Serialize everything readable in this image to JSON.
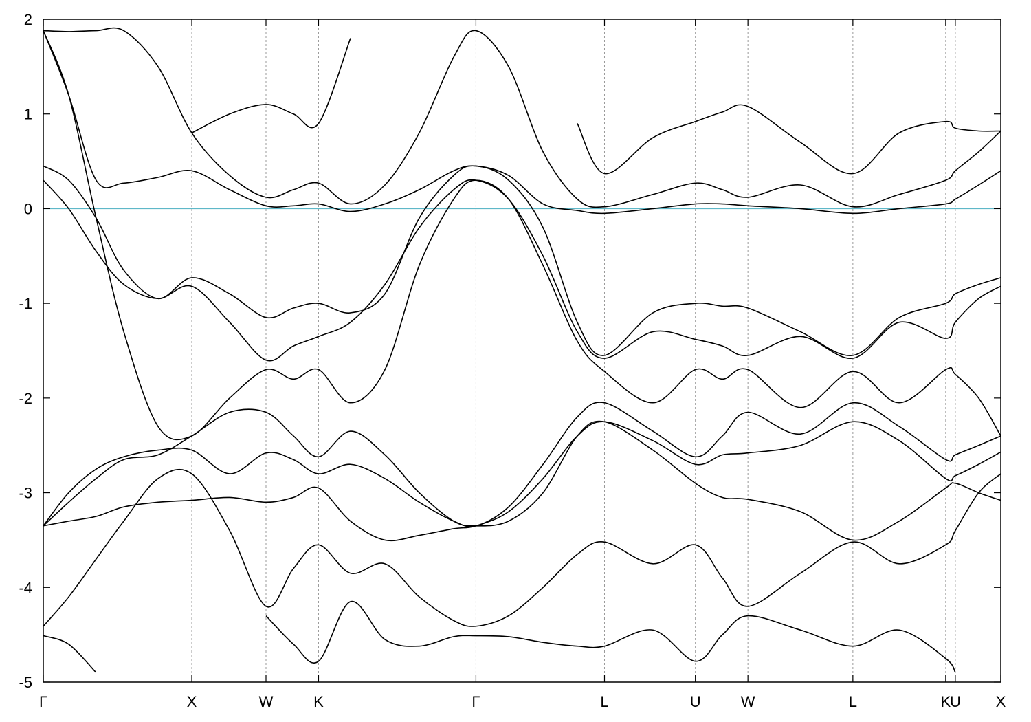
{
  "chart_data": {
    "type": "line",
    "color": "#000000",
    "x": [
      0,
      0.171,
      0.356,
      0.542,
      0.773,
      1.0,
      1.255,
      1.5,
      1.685,
      1.854,
      2.069,
      2.301,
      2.532,
      2.764,
      2.914,
      3.134,
      3.366,
      3.597,
      3.78,
      4.106,
      4.392,
      4.574,
      4.746,
      5.1,
      5.453,
      5.765,
      6.078,
      6.143,
      6.3,
      6.449
    ],
    "series": [
      {
        "values": [
          -4.51,
          -4.6,
          -4.9,
          null,
          null,
          null,
          null,
          -4.3,
          -4.6,
          -4.78,
          -4.15,
          -4.55,
          -4.62,
          -4.52,
          -4.51,
          -4.52,
          -4.58,
          -4.62,
          -4.62,
          -4.45,
          -4.78,
          -4.5,
          -4.3,
          -4.45,
          -4.62,
          -4.45,
          -4.75,
          -4.9,
          null,
          null
        ]
      },
      {
        "values": [
          -4.41,
          -4.1,
          -3.7,
          -3.3,
          -2.85,
          -2.8,
          -3.4,
          -4.2,
          -3.8,
          -3.55,
          -3.85,
          -3.75,
          -4.1,
          -4.35,
          -4.41,
          -4.3,
          -4.0,
          -3.65,
          -3.52,
          -3.75,
          -3.55,
          -3.9,
          -4.2,
          -3.85,
          -3.52,
          -3.75,
          -3.55,
          -3.4,
          -3.0,
          -2.8
        ]
      },
      {
        "values": [
          -3.35,
          -3.3,
          -3.25,
          -3.15,
          -3.1,
          -3.08,
          -3.05,
          -3.1,
          -3.05,
          -2.95,
          -3.3,
          -3.5,
          -3.45,
          -3.38,
          -3.35,
          -3.2,
          -2.85,
          -2.4,
          -2.25,
          -2.45,
          -2.7,
          -2.6,
          -2.58,
          -2.5,
          -2.25,
          -2.45,
          -2.85,
          -2.82,
          -2.7,
          -2.57
        ]
      },
      {
        "values": [
          -3.35,
          -3.0,
          -2.75,
          -2.62,
          -2.55,
          -2.55,
          -2.8,
          -2.58,
          -2.65,
          -2.8,
          -2.7,
          -2.85,
          -3.1,
          -3.3,
          -3.35,
          -3.15,
          -2.7,
          -2.2,
          -2.05,
          -2.35,
          -2.62,
          -2.4,
          -2.15,
          -2.38,
          -2.05,
          -2.3,
          -2.65,
          -2.6,
          -2.5,
          -2.4
        ]
      },
      {
        "values": [
          1.88,
          1.2,
          -0.1,
          -1.3,
          -2.3,
          -2.4,
          -2.0,
          -1.7,
          -1.8,
          -1.7,
          -2.05,
          -1.7,
          -0.6,
          0.1,
          0.3,
          0.1,
          -0.6,
          -1.4,
          -1.72,
          -2.05,
          -1.7,
          -1.8,
          -1.7,
          -2.1,
          -1.72,
          -2.05,
          -1.7,
          -1.75,
          -2.0,
          -2.4
        ]
      },
      {
        "values": [
          0.3,
          0.0,
          -0.45,
          -0.8,
          -0.95,
          -0.82,
          -1.2,
          -1.6,
          -1.45,
          -1.35,
          -1.2,
          -0.8,
          -0.2,
          0.2,
          0.3,
          0.1,
          -0.5,
          -1.3,
          -1.58,
          -1.3,
          -1.38,
          -1.45,
          -1.55,
          -1.35,
          -1.58,
          -1.2,
          -1.37,
          -1.2,
          -0.95,
          -0.82
        ]
      },
      {
        "values": [
          0.45,
          0.3,
          -0.1,
          -0.65,
          -0.95,
          -0.73,
          -0.9,
          -1.15,
          -1.05,
          -1.0,
          -1.1,
          -0.9,
          -0.1,
          0.35,
          0.45,
          0.3,
          -0.2,
          -1.2,
          -1.55,
          -1.1,
          -1.0,
          -1.03,
          -1.05,
          -1.3,
          -1.55,
          -1.15,
          -1.0,
          -0.9,
          -0.8,
          -0.73
        ]
      },
      {
        "values": [
          1.88,
          1.87,
          1.88,
          1.88,
          1.5,
          0.8,
          0.35,
          0.12,
          0.2,
          0.27,
          0.05,
          0.25,
          0.8,
          1.6,
          1.88,
          1.5,
          0.6,
          0.1,
          0.02,
          0.15,
          0.27,
          0.2,
          0.12,
          0.25,
          0.02,
          0.15,
          0.3,
          0.4,
          0.6,
          0.82
        ]
      },
      {
        "values": [
          1.88,
          1.2,
          0.3,
          0.27,
          0.33,
          0.4,
          0.2,
          0.03,
          0.03,
          0.05,
          -0.03,
          0.05,
          0.2,
          0.4,
          0.45,
          0.35,
          0.05,
          -0.02,
          -0.05,
          0.0,
          0.05,
          0.05,
          0.03,
          0.0,
          -0.05,
          0.0,
          0.05,
          0.1,
          0.25,
          0.4
        ]
      },
      {
        "values": [
          null,
          null,
          null,
          null,
          null,
          0.8,
          1.0,
          1.1,
          1.0,
          0.9,
          1.8,
          null,
          null,
          null,
          null,
          null,
          null,
          0.9,
          0.37,
          0.75,
          0.92,
          1.02,
          1.08,
          0.7,
          0.37,
          0.8,
          0.92,
          0.85,
          0.82,
          0.82
        ]
      },
      {
        "values": [
          -3.35,
          -3.1,
          -2.85,
          -2.65,
          -2.6,
          -2.4,
          -2.15,
          -2.15,
          -2.4,
          -2.62,
          -2.35,
          -2.6,
          -3.0,
          -3.3,
          -3.35,
          -3.3,
          -3.0,
          -2.4,
          -2.25,
          -2.55,
          -2.9,
          -3.05,
          -3.07,
          -3.2,
          -3.5,
          -3.3,
          -2.95,
          -2.9,
          -3.0,
          -3.08
        ]
      }
    ],
    "xlim": [
      0,
      6.449
    ],
    "xticks": [
      {
        "value": 0,
        "label": "Γ"
      },
      {
        "value": 1.0,
        "label": "X"
      },
      {
        "value": 1.5,
        "label": "W"
      },
      {
        "value": 1.854,
        "label": "K"
      },
      {
        "value": 2.914,
        "label": "Γ"
      },
      {
        "value": 3.78,
        "label": "L"
      },
      {
        "value": 4.392,
        "label": "U"
      },
      {
        "value": 4.746,
        "label": "W"
      },
      {
        "value": 5.453,
        "label": "L"
      },
      {
        "value": 6.078,
        "label": "K"
      },
      {
        "value": 6.143,
        "label": "U"
      },
      {
        "value": 6.449,
        "label": "X"
      }
    ],
    "ylim": [
      -5,
      2
    ],
    "yticks": [
      -5,
      -4,
      -3,
      -2,
      -1,
      0,
      1,
      2
    ],
    "grid": true,
    "reference_line": {
      "value": 0,
      "color": "#5fb8c8"
    }
  }
}
